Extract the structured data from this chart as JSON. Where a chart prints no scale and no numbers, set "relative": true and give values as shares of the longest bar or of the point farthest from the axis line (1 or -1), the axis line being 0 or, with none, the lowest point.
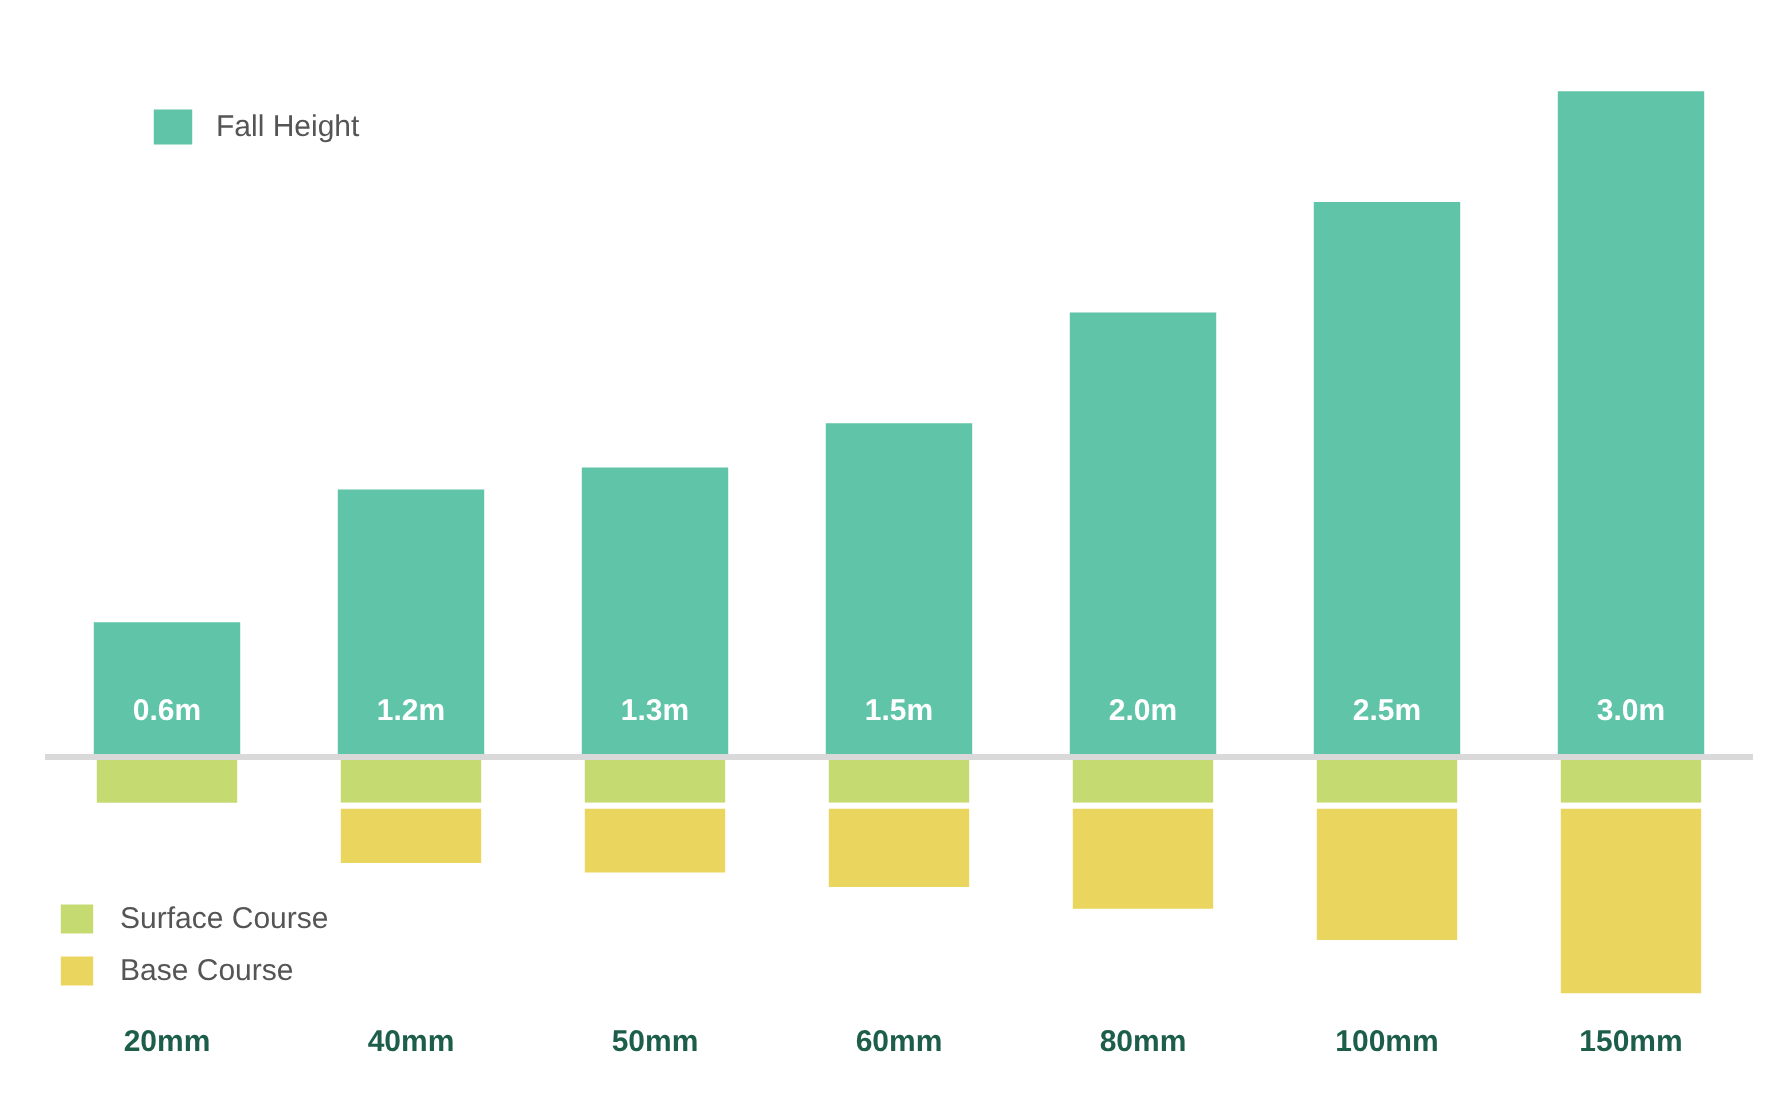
{
  "chart_data": [
    {
      "type": "bar",
      "tick_labels": false,
      "legend": "top left",
      "categories": [
        null,
        null,
        null,
        null,
        null,
        null,
        null
      ],
      "series": [
        {
          "name": "Fall Height",
          "color": "#5fc4a8",
          "values": [
            0.6,
            1.2,
            1.3,
            1.5,
            2.0,
            2.5,
            3.0
          ],
          "value_labels": [
            "0.6m",
            "1.2m",
            "1.3m",
            "1.5m",
            "2.0m",
            "2.5m",
            "3.0m"
          ]
        }
      ]
    },
    {
      "type": "bar",
      "relative": true,
      "stacked": true,
      "legend": "bottom left",
      "categories": [
        "20mm",
        "40mm",
        "50mm",
        "60mm",
        "80mm",
        "100mm",
        "150mm"
      ],
      "series": [
        {
          "name": "Surface Course",
          "color": "#c6da72",
          "values": [
            -0.21,
            -0.21,
            -0.21,
            -0.21,
            -0.21,
            -0.21,
            -0.21
          ]
        },
        {
          "name": "Base Course",
          "color": "#ead65e",
          "values": [
            null,
            -0.25,
            -0.29,
            -0.35,
            -0.44,
            -0.57,
            -0.79
          ]
        }
      ]
    }
  ]
}
